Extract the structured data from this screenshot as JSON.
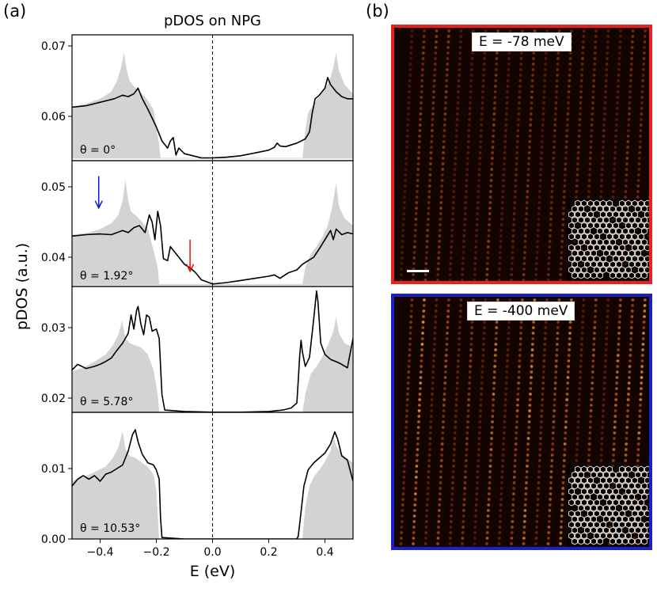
{
  "panel_a_label": "(a)",
  "panel_b_label": "(b)",
  "colors": {
    "curve": "#000000",
    "shade": "#d3d3d3",
    "arrow_blue": "#1010e0",
    "arrow_red": "#e01010",
    "frame_red": "#e8231f",
    "frame_blue": "#1f1fc8"
  },
  "chart_data": {
    "type": "line",
    "title": "pDOS on NPG",
    "xlabel": "E (eV)",
    "ylabel": "pDOS (a.u.)",
    "xlim": [
      -0.5,
      0.5
    ],
    "xticks": [
      -0.4,
      -0.2,
      0.0,
      0.2,
      0.4
    ],
    "xtick_labels": [
      "−0.4",
      "−0.2",
      "0.0",
      "0.2",
      "0.4"
    ],
    "ylim": [
      0.0,
      0.072
    ],
    "yticks": [
      0.0,
      0.01,
      0.02,
      0.03,
      0.04,
      0.05,
      0.06,
      0.07
    ],
    "ytick_labels": [
      "0.00",
      "0.01",
      "0.02",
      "0.03",
      "0.04",
      "0.05",
      "0.06",
      "0.07"
    ],
    "zero_line": "dashed vertical at E = 0",
    "subpanels": [
      {
        "label": "θ = 0°",
        "offset": 0.054,
        "curve": [
          [
            -0.5,
            0.0613
          ],
          [
            -0.45,
            0.0615
          ],
          [
            -0.4,
            0.062
          ],
          [
            -0.35,
            0.0625
          ],
          [
            -0.32,
            0.063
          ],
          [
            -0.3,
            0.0628
          ],
          [
            -0.28,
            0.0632
          ],
          [
            -0.265,
            0.064
          ],
          [
            -0.25,
            0.0625
          ],
          [
            -0.23,
            0.061
          ],
          [
            -0.2,
            0.0585
          ],
          [
            -0.18,
            0.0565
          ],
          [
            -0.16,
            0.0555
          ],
          [
            -0.15,
            0.0565
          ],
          [
            -0.14,
            0.057
          ],
          [
            -0.13,
            0.0545
          ],
          [
            -0.12,
            0.0555
          ],
          [
            -0.1,
            0.0547
          ],
          [
            -0.07,
            0.0544
          ],
          [
            -0.04,
            0.0541
          ],
          [
            0.0,
            0.0541
          ],
          [
            0.05,
            0.0542
          ],
          [
            0.1,
            0.0544
          ],
          [
            0.15,
            0.0548
          ],
          [
            0.2,
            0.0552
          ],
          [
            0.22,
            0.0556
          ],
          [
            0.23,
            0.0562
          ],
          [
            0.24,
            0.0558
          ],
          [
            0.26,
            0.0557
          ],
          [
            0.3,
            0.0562
          ],
          [
            0.33,
            0.0568
          ],
          [
            0.345,
            0.0578
          ],
          [
            0.355,
            0.0605
          ],
          [
            0.365,
            0.0625
          ],
          [
            0.38,
            0.063
          ],
          [
            0.4,
            0.064
          ],
          [
            0.41,
            0.0655
          ],
          [
            0.42,
            0.0645
          ],
          [
            0.44,
            0.0635
          ],
          [
            0.46,
            0.0628
          ],
          [
            0.48,
            0.0625
          ],
          [
            0.5,
            0.0625
          ]
        ],
        "shade": [
          [
            -0.5,
            0.0613
          ],
          [
            -0.45,
            0.0618
          ],
          [
            -0.4,
            0.0625
          ],
          [
            -0.36,
            0.0635
          ],
          [
            -0.34,
            0.065
          ],
          [
            -0.325,
            0.067
          ],
          [
            -0.315,
            0.069
          ],
          [
            -0.305,
            0.0665
          ],
          [
            -0.295,
            0.065
          ],
          [
            -0.28,
            0.0643
          ],
          [
            -0.26,
            0.0635
          ],
          [
            -0.24,
            0.0628
          ],
          [
            -0.21,
            0.061
          ],
          [
            -0.19,
            0.056
          ],
          [
            -0.185,
            0.0541
          ],
          [
            0.32,
            0.0541
          ],
          [
            0.33,
            0.058
          ],
          [
            0.34,
            0.0605
          ],
          [
            0.36,
            0.0617
          ],
          [
            0.38,
            0.0628
          ],
          [
            0.4,
            0.0638
          ],
          [
            0.42,
            0.0655
          ],
          [
            0.43,
            0.067
          ],
          [
            0.44,
            0.069
          ],
          [
            0.45,
            0.0665
          ],
          [
            0.47,
            0.0645
          ],
          [
            0.5,
            0.0632
          ]
        ]
      },
      {
        "label": "θ = 1.92°",
        "offset": 0.036,
        "curve": [
          [
            -0.5,
            0.043
          ],
          [
            -0.45,
            0.0432
          ],
          [
            -0.4,
            0.0433
          ],
          [
            -0.36,
            0.0432
          ],
          [
            -0.34,
            0.0435
          ],
          [
            -0.32,
            0.0438
          ],
          [
            -0.3,
            0.0435
          ],
          [
            -0.28,
            0.0442
          ],
          [
            -0.26,
            0.0445
          ],
          [
            -0.24,
            0.0435
          ],
          [
            -0.225,
            0.046
          ],
          [
            -0.215,
            0.045
          ],
          [
            -0.205,
            0.0425
          ],
          [
            -0.195,
            0.0465
          ],
          [
            -0.185,
            0.0445
          ],
          [
            -0.175,
            0.0398
          ],
          [
            -0.16,
            0.0395
          ],
          [
            -0.15,
            0.0415
          ],
          [
            -0.14,
            0.041
          ],
          [
            -0.12,
            0.04
          ],
          [
            -0.1,
            0.039
          ],
          [
            -0.08,
            0.0385
          ],
          [
            -0.06,
            0.0378
          ],
          [
            -0.04,
            0.0368
          ],
          [
            0.0,
            0.0362
          ],
          [
            0.05,
            0.0364
          ],
          [
            0.1,
            0.0367
          ],
          [
            0.15,
            0.037
          ],
          [
            0.2,
            0.0373
          ],
          [
            0.22,
            0.0375
          ],
          [
            0.24,
            0.037
          ],
          [
            0.27,
            0.0378
          ],
          [
            0.3,
            0.0382
          ],
          [
            0.32,
            0.039
          ],
          [
            0.34,
            0.0395
          ],
          [
            0.36,
            0.04
          ],
          [
            0.38,
            0.0412
          ],
          [
            0.4,
            0.0425
          ],
          [
            0.42,
            0.0438
          ],
          [
            0.43,
            0.0425
          ],
          [
            0.44,
            0.044
          ],
          [
            0.46,
            0.0432
          ],
          [
            0.48,
            0.0435
          ],
          [
            0.5,
            0.0433
          ]
        ],
        "shade": [
          [
            -0.5,
            0.0432
          ],
          [
            -0.44,
            0.0435
          ],
          [
            -0.4,
            0.044
          ],
          [
            -0.36,
            0.0448
          ],
          [
            -0.335,
            0.046
          ],
          [
            -0.32,
            0.048
          ],
          [
            -0.31,
            0.051
          ],
          [
            -0.3,
            0.048
          ],
          [
            -0.29,
            0.0465
          ],
          [
            -0.27,
            0.0458
          ],
          [
            -0.25,
            0.045
          ],
          [
            -0.23,
            0.044
          ],
          [
            -0.21,
            0.041
          ],
          [
            -0.195,
            0.0385
          ],
          [
            -0.19,
            0.0362
          ],
          [
            0.32,
            0.0362
          ],
          [
            0.33,
            0.0385
          ],
          [
            0.35,
            0.0405
          ],
          [
            0.37,
            0.0415
          ],
          [
            0.39,
            0.0428
          ],
          [
            0.41,
            0.0445
          ],
          [
            0.425,
            0.047
          ],
          [
            0.44,
            0.0505
          ],
          [
            0.45,
            0.0472
          ],
          [
            0.47,
            0.0455
          ],
          [
            0.5,
            0.0445
          ]
        ]
      },
      {
        "label": "θ = 5.78°",
        "offset": 0.018,
        "curve": [
          [
            -0.5,
            0.024
          ],
          [
            -0.48,
            0.0248
          ],
          [
            -0.45,
            0.0242
          ],
          [
            -0.42,
            0.0245
          ],
          [
            -0.4,
            0.0248
          ],
          [
            -0.38,
            0.0252
          ],
          [
            -0.36,
            0.0257
          ],
          [
            -0.34,
            0.0268
          ],
          [
            -0.32,
            0.0278
          ],
          [
            -0.3,
            0.0292
          ],
          [
            -0.29,
            0.0318
          ],
          [
            -0.28,
            0.0298
          ],
          [
            -0.27,
            0.0325
          ],
          [
            -0.265,
            0.033
          ],
          [
            -0.255,
            0.0305
          ],
          [
            -0.245,
            0.029
          ],
          [
            -0.235,
            0.0318
          ],
          [
            -0.225,
            0.0315
          ],
          [
            -0.215,
            0.0295
          ],
          [
            -0.2,
            0.0298
          ],
          [
            -0.19,
            0.0285
          ],
          [
            -0.18,
            0.0205
          ],
          [
            -0.17,
            0.0183
          ],
          [
            -0.1,
            0.0181
          ],
          [
            0.0,
            0.018
          ],
          [
            0.1,
            0.018
          ],
          [
            0.2,
            0.0181
          ],
          [
            0.25,
            0.0183
          ],
          [
            0.28,
            0.0186
          ],
          [
            0.3,
            0.0193
          ],
          [
            0.305,
            0.0225
          ],
          [
            0.31,
            0.026
          ],
          [
            0.315,
            0.0282
          ],
          [
            0.32,
            0.0265
          ],
          [
            0.33,
            0.0245
          ],
          [
            0.345,
            0.0258
          ],
          [
            0.36,
            0.0312
          ],
          [
            0.37,
            0.0352
          ],
          [
            0.375,
            0.0338
          ],
          [
            0.385,
            0.0278
          ],
          [
            0.4,
            0.0262
          ],
          [
            0.42,
            0.0255
          ],
          [
            0.45,
            0.025
          ],
          [
            0.48,
            0.0243
          ],
          [
            0.5,
            0.0285
          ]
        ],
        "shade": [
          [
            -0.5,
            0.0238
          ],
          [
            -0.46,
            0.0243
          ],
          [
            -0.42,
            0.0252
          ],
          [
            -0.38,
            0.0262
          ],
          [
            -0.355,
            0.0275
          ],
          [
            -0.335,
            0.029
          ],
          [
            -0.322,
            0.031
          ],
          [
            -0.31,
            0.0285
          ],
          [
            -0.295,
            0.0278
          ],
          [
            -0.275,
            0.0275
          ],
          [
            -0.255,
            0.0272
          ],
          [
            -0.23,
            0.0262
          ],
          [
            -0.21,
            0.024
          ],
          [
            -0.195,
            0.0205
          ],
          [
            -0.19,
            0.018
          ],
          [
            0.32,
            0.018
          ],
          [
            0.33,
            0.0205
          ],
          [
            0.35,
            0.0235
          ],
          [
            0.37,
            0.0245
          ],
          [
            0.39,
            0.0258
          ],
          [
            0.41,
            0.0275
          ],
          [
            0.43,
            0.0295
          ],
          [
            0.44,
            0.0315
          ],
          [
            0.45,
            0.0292
          ],
          [
            0.47,
            0.0278
          ],
          [
            0.5,
            0.0272
          ]
        ]
      },
      {
        "label": "θ = 10.53°",
        "offset": 0.0,
        "curve": [
          [
            -0.5,
            0.0075
          ],
          [
            -0.48,
            0.0085
          ],
          [
            -0.46,
            0.009
          ],
          [
            -0.44,
            0.0085
          ],
          [
            -0.42,
            0.009
          ],
          [
            -0.4,
            0.0082
          ],
          [
            -0.38,
            0.0092
          ],
          [
            -0.36,
            0.0095
          ],
          [
            -0.34,
            0.01
          ],
          [
            -0.32,
            0.0105
          ],
          [
            -0.3,
            0.0125
          ],
          [
            -0.285,
            0.0148
          ],
          [
            -0.275,
            0.0155
          ],
          [
            -0.265,
            0.0138
          ],
          [
            -0.25,
            0.012
          ],
          [
            -0.23,
            0.0108
          ],
          [
            -0.21,
            0.0105
          ],
          [
            -0.2,
            0.0098
          ],
          [
            -0.19,
            0.0085
          ],
          [
            -0.185,
            0.003
          ],
          [
            -0.18,
            0.0002
          ],
          [
            -0.1,
            0.0
          ],
          [
            0.3,
            0.0
          ],
          [
            0.305,
            0.0004
          ],
          [
            0.315,
            0.0038
          ],
          [
            0.325,
            0.0075
          ],
          [
            0.34,
            0.0098
          ],
          [
            0.36,
            0.0108
          ],
          [
            0.38,
            0.0115
          ],
          [
            0.4,
            0.0122
          ],
          [
            0.42,
            0.0135
          ],
          [
            0.435,
            0.0152
          ],
          [
            0.445,
            0.0142
          ],
          [
            0.46,
            0.0118
          ],
          [
            0.48,
            0.0112
          ],
          [
            0.5,
            0.0082
          ]
        ],
        "shade": [
          [
            -0.5,
            0.0082
          ],
          [
            -0.46,
            0.0088
          ],
          [
            -0.42,
            0.0095
          ],
          [
            -0.38,
            0.0103
          ],
          [
            -0.355,
            0.0115
          ],
          [
            -0.335,
            0.013
          ],
          [
            -0.32,
            0.0153
          ],
          [
            -0.31,
            0.0128
          ],
          [
            -0.295,
            0.0118
          ],
          [
            -0.275,
            0.0115
          ],
          [
            -0.25,
            0.0108
          ],
          [
            -0.23,
            0.0102
          ],
          [
            -0.21,
            0.0092
          ],
          [
            -0.2,
            0.007
          ],
          [
            -0.19,
            0.0
          ],
          [
            0.32,
            0.0
          ],
          [
            0.33,
            0.0045
          ],
          [
            0.345,
            0.0075
          ],
          [
            0.36,
            0.0088
          ],
          [
            0.38,
            0.0098
          ],
          [
            0.4,
            0.011
          ],
          [
            0.42,
            0.0125
          ],
          [
            0.43,
            0.0145
          ],
          [
            0.44,
            0.0132
          ],
          [
            0.46,
            0.012
          ],
          [
            0.5,
            0.0108
          ]
        ]
      }
    ],
    "arrows": [
      {
        "subpanel": 1,
        "x": -0.405,
        "y_from": 0.0515,
        "y_to": 0.047,
        "color": "blue"
      },
      {
        "subpanel": 1,
        "x": -0.08,
        "y_from": 0.0425,
        "y_to": 0.038,
        "color": "red"
      }
    ]
  },
  "stm_images": [
    {
      "energy_label": "E = -78 meV",
      "frame": "red",
      "scale_bar": true
    },
    {
      "energy_label": "E = -400 meV",
      "frame": "blue",
      "scale_bar": false
    }
  ]
}
